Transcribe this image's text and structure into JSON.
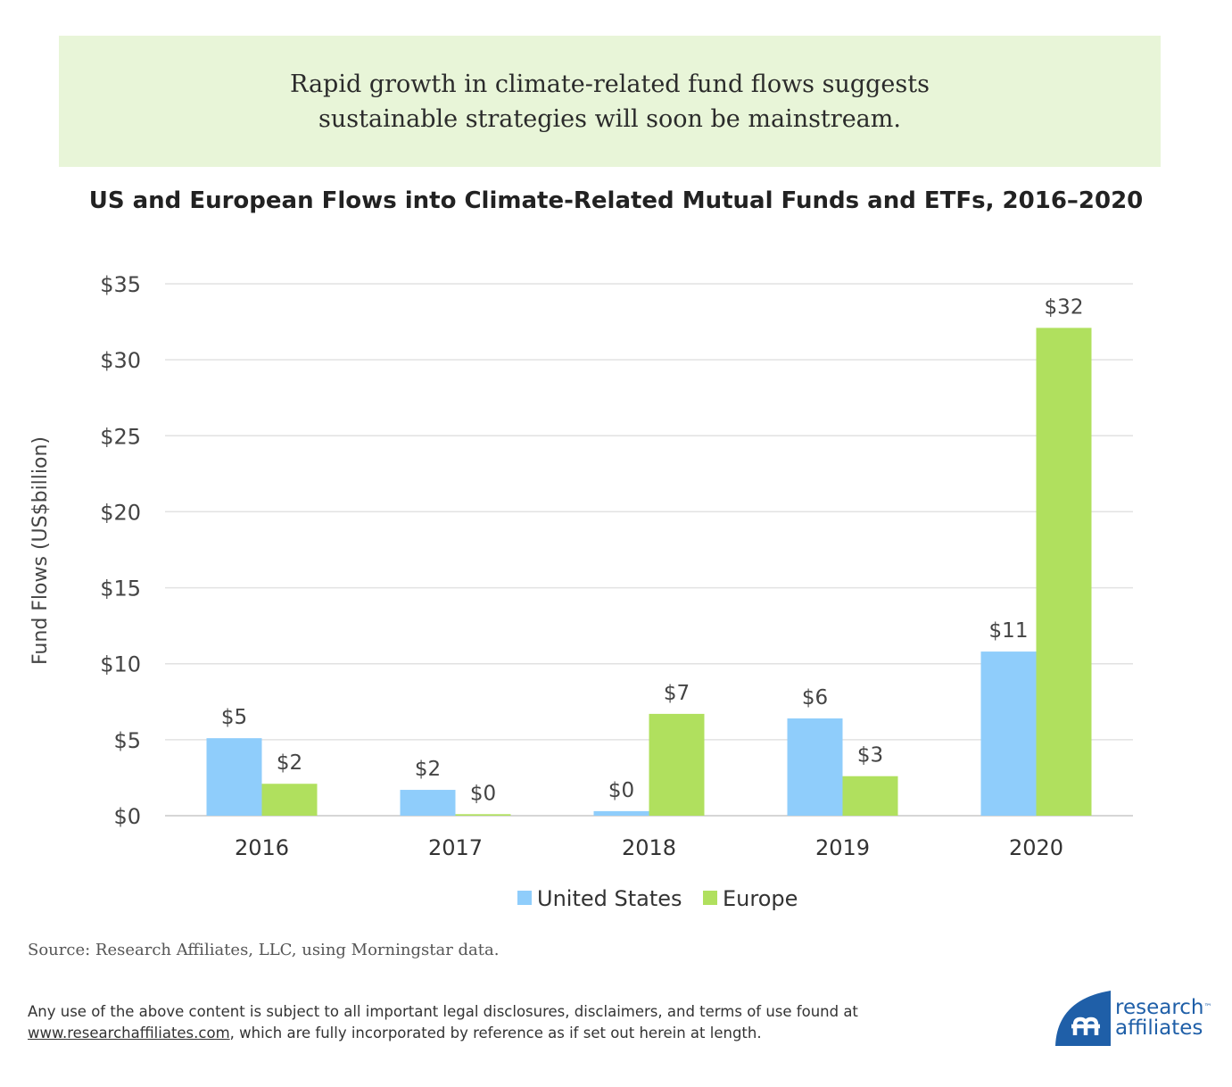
{
  "banner": {
    "line1": "Rapid growth in climate-related fund flows suggests",
    "line2": "sustainable strategies will soon be mainstream."
  },
  "chart_data": {
    "type": "bar",
    "title": "US and European Flows into Climate-Related Mutual Funds and ETFs, 2016–2020",
    "ylabel": "Fund Flows (US$billion)",
    "xlabel": "",
    "categories": [
      "2016",
      "2017",
      "2018",
      "2019",
      "2020"
    ],
    "ylim": [
      0,
      35
    ],
    "yticks": [
      0,
      5,
      10,
      15,
      20,
      25,
      30,
      35
    ],
    "ytick_labels": [
      "$0",
      "$5",
      "$10",
      "$15",
      "$20",
      "$25",
      "$30",
      "$35"
    ],
    "grid": true,
    "legend_position": "bottom-center",
    "series": [
      {
        "name": "United States",
        "color": "#8fcdfb",
        "values": [
          5.1,
          1.7,
          0.3,
          6.4,
          10.8
        ],
        "labels": [
          "$5",
          "$2",
          "$0",
          "$6",
          "$11"
        ]
      },
      {
        "name": "Europe",
        "color": "#b0e05e",
        "values": [
          2.1,
          0.1,
          6.7,
          2.6,
          32.1
        ],
        "labels": [
          "$2",
          "$0",
          "$7",
          "$3",
          "$32"
        ]
      }
    ]
  },
  "source": "Source: Research Affiliates, LLC, using Morningstar data.",
  "disclaimer": {
    "line1": "Any use of the above content is subject to all important legal disclosures, disclaimers, and terms of use found at",
    "link": "www.researchaffiliates.com",
    "line2_rest": ", which are fully incorporated by reference as if set out herein at length."
  },
  "logo": {
    "word1": "research",
    "tm": "™",
    "word2": "affiliates",
    "color": "#1f5fa8"
  }
}
